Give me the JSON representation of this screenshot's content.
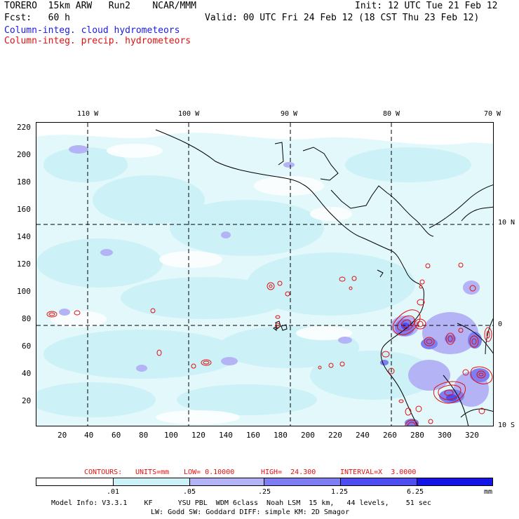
{
  "header": {
    "line1_left": "TORERO  15km ARW   Run2    NCAR/MMM",
    "line1_right": "Init: 12 UTC Tue 21 Feb 12",
    "line2_left": "Fcst:   60 h",
    "line2_right": "Valid: 00 UTC Fri 24 Feb 12 (18 CST Thu 23 Feb 12)",
    "legend_blue": "Column-integ. cloud hydrometeors",
    "legend_red": "Column-integ. precip. hydrometeors"
  },
  "colors": {
    "cloud_light": "#ccf2f7",
    "cloud_mid": "#b3b3f5",
    "cloud_strong": "#7e7ef2",
    "cloud_darker": "#4d4df0",
    "cloud_darkest": "#1414e6",
    "precip": "#e01010",
    "grid": "#000000"
  },
  "map": {
    "lon_labels": [
      "110 W",
      "100 W",
      "90 W",
      "80 W",
      "70 W"
    ],
    "lat_labels": [
      "10 N",
      "0",
      "10 S"
    ],
    "y_ticks": [
      "220",
      "200",
      "180",
      "160",
      "140",
      "120",
      "100",
      "80",
      "60",
      "40",
      "20"
    ],
    "x_ticks": [
      "20",
      "40",
      "60",
      "80",
      "100",
      "120",
      "140",
      "160",
      "180",
      "200",
      "220",
      "240",
      "260",
      "280",
      "300",
      "320"
    ]
  },
  "contours": {
    "label": "CONTOURS:",
    "units": "UNITS=mm",
    "low": "LOW= 0.10000",
    "high": "HIGH=  24.300",
    "interval": "INTERVAL=X  3.0000"
  },
  "colorbar": {
    "labels": [
      ".01",
      ".05",
      ".25",
      "1.25",
      "6.25"
    ],
    "units": "mm"
  },
  "footer": {
    "line1": "Model Info: V3.3.1    KF      YSU PBL  WDM 6class  Noah LSM  15 km,   44 levels,    51 sec",
    "line2": "LW: Godd SW: Goddard DIFF: simple KM: 2D Smagor"
  }
}
